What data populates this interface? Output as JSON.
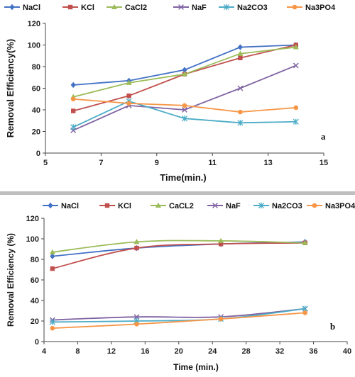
{
  "chart_data": [
    {
      "type": "line",
      "panel_label": "a",
      "xlabel": "Time(min.)",
      "ylabel": "Removal Efficiency(%)",
      "xlim": [
        5,
        15
      ],
      "ylim": [
        0,
        120
      ],
      "xticks": [
        5,
        7,
        9,
        11,
        13,
        15
      ],
      "yticks": [
        0,
        20,
        40,
        60,
        80,
        100,
        120
      ],
      "legend_position": "top",
      "grid": false,
      "x": [
        6,
        8,
        10,
        12,
        14
      ],
      "series": [
        {
          "name": "NaCl",
          "color": "#4472C4",
          "marker": "diamond",
          "values": [
            63,
            67,
            77,
            98,
            100
          ]
        },
        {
          "name": "KCl",
          "color": "#C0504D",
          "marker": "square",
          "values": [
            39,
            53,
            73,
            88,
            100
          ]
        },
        {
          "name": "CaCl2",
          "color": "#9BBB59",
          "marker": "triangle",
          "values": [
            52,
            65,
            73,
            92,
            98
          ]
        },
        {
          "name": "NaF",
          "color": "#8064A2",
          "marker": "x",
          "values": [
            21,
            44,
            40,
            60,
            81
          ]
        },
        {
          "name": "Na2CO3",
          "color": "#4BACC6",
          "marker": "star",
          "values": [
            24,
            48,
            32,
            28,
            29
          ]
        },
        {
          "name": "Na3PO4",
          "color": "#F79646",
          "marker": "circle",
          "values": [
            50,
            46,
            44,
            38,
            42
          ]
        }
      ]
    },
    {
      "type": "line",
      "panel_label": "b",
      "xlabel": "Time (min.)",
      "ylabel": "Removal  Efficiency (%)",
      "xlim": [
        4,
        40
      ],
      "ylim": [
        0,
        120
      ],
      "xticks": [
        4,
        8,
        12,
        16,
        20,
        24,
        28,
        32,
        36,
        40
      ],
      "yticks": [
        0,
        20,
        40,
        60,
        80,
        100,
        120
      ],
      "legend_position": "top",
      "grid": false,
      "smooth": true,
      "x": [
        5,
        15,
        25,
        35
      ],
      "series": [
        {
          "name": "NaCl",
          "color": "#4472C4",
          "marker": "diamond",
          "values": [
            83,
            91,
            95,
            97
          ]
        },
        {
          "name": "KCl",
          "color": "#C0504D",
          "marker": "square",
          "values": [
            71,
            91,
            95,
            96
          ]
        },
        {
          "name": "CaCL2",
          "color": "#9BBB59",
          "marker": "triangle",
          "values": [
            87,
            97,
            98,
            96
          ]
        },
        {
          "name": "NaF",
          "color": "#8064A2",
          "marker": "x",
          "values": [
            21,
            24,
            24,
            32
          ]
        },
        {
          "name": "Na2CO3",
          "color": "#4BACC6",
          "marker": "star",
          "values": [
            19,
            20,
            22,
            32
          ]
        },
        {
          "name": "Na3PO4",
          "color": "#F79646",
          "marker": "circle",
          "values": [
            13,
            17,
            22,
            28
          ]
        }
      ]
    }
  ]
}
